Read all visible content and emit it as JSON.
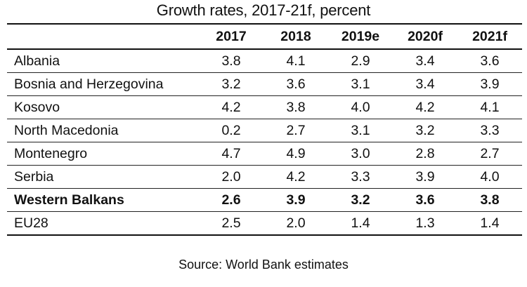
{
  "title": "Growth rates, 2017-21f, percent",
  "columns": [
    "",
    "2017",
    "2018",
    "2019e",
    "2020f",
    "2021f"
  ],
  "rows": [
    {
      "name": "Albania",
      "values": [
        "3.8",
        "4.1",
        "2.9",
        "3.4",
        "3.6"
      ]
    },
    {
      "name": "Bosnia and Herzegovina",
      "values": [
        "3.2",
        "3.6",
        "3.1",
        "3.4",
        "3.9"
      ]
    },
    {
      "name": "Kosovo",
      "values": [
        "4.2",
        "3.8",
        "4.0",
        "4.2",
        "4.1"
      ]
    },
    {
      "name": "North Macedonia",
      "values": [
        "0.2",
        "2.7",
        "3.1",
        "3.2",
        "3.3"
      ]
    },
    {
      "name": "Montenegro",
      "values": [
        "4.7",
        "4.9",
        "3.0",
        "2.8",
        "2.7"
      ]
    },
    {
      "name": "Serbia",
      "values": [
        "2.0",
        "4.2",
        "3.3",
        "3.9",
        "4.0"
      ]
    },
    {
      "name": "Western Balkans",
      "values": [
        "2.6",
        "3.9",
        "3.2",
        "3.6",
        "3.8"
      ]
    },
    {
      "name": "EU28",
      "values": [
        "2.5",
        "2.0",
        "1.4",
        "1.3",
        "1.4"
      ]
    }
  ],
  "source": "Source: World Bank estimates"
}
